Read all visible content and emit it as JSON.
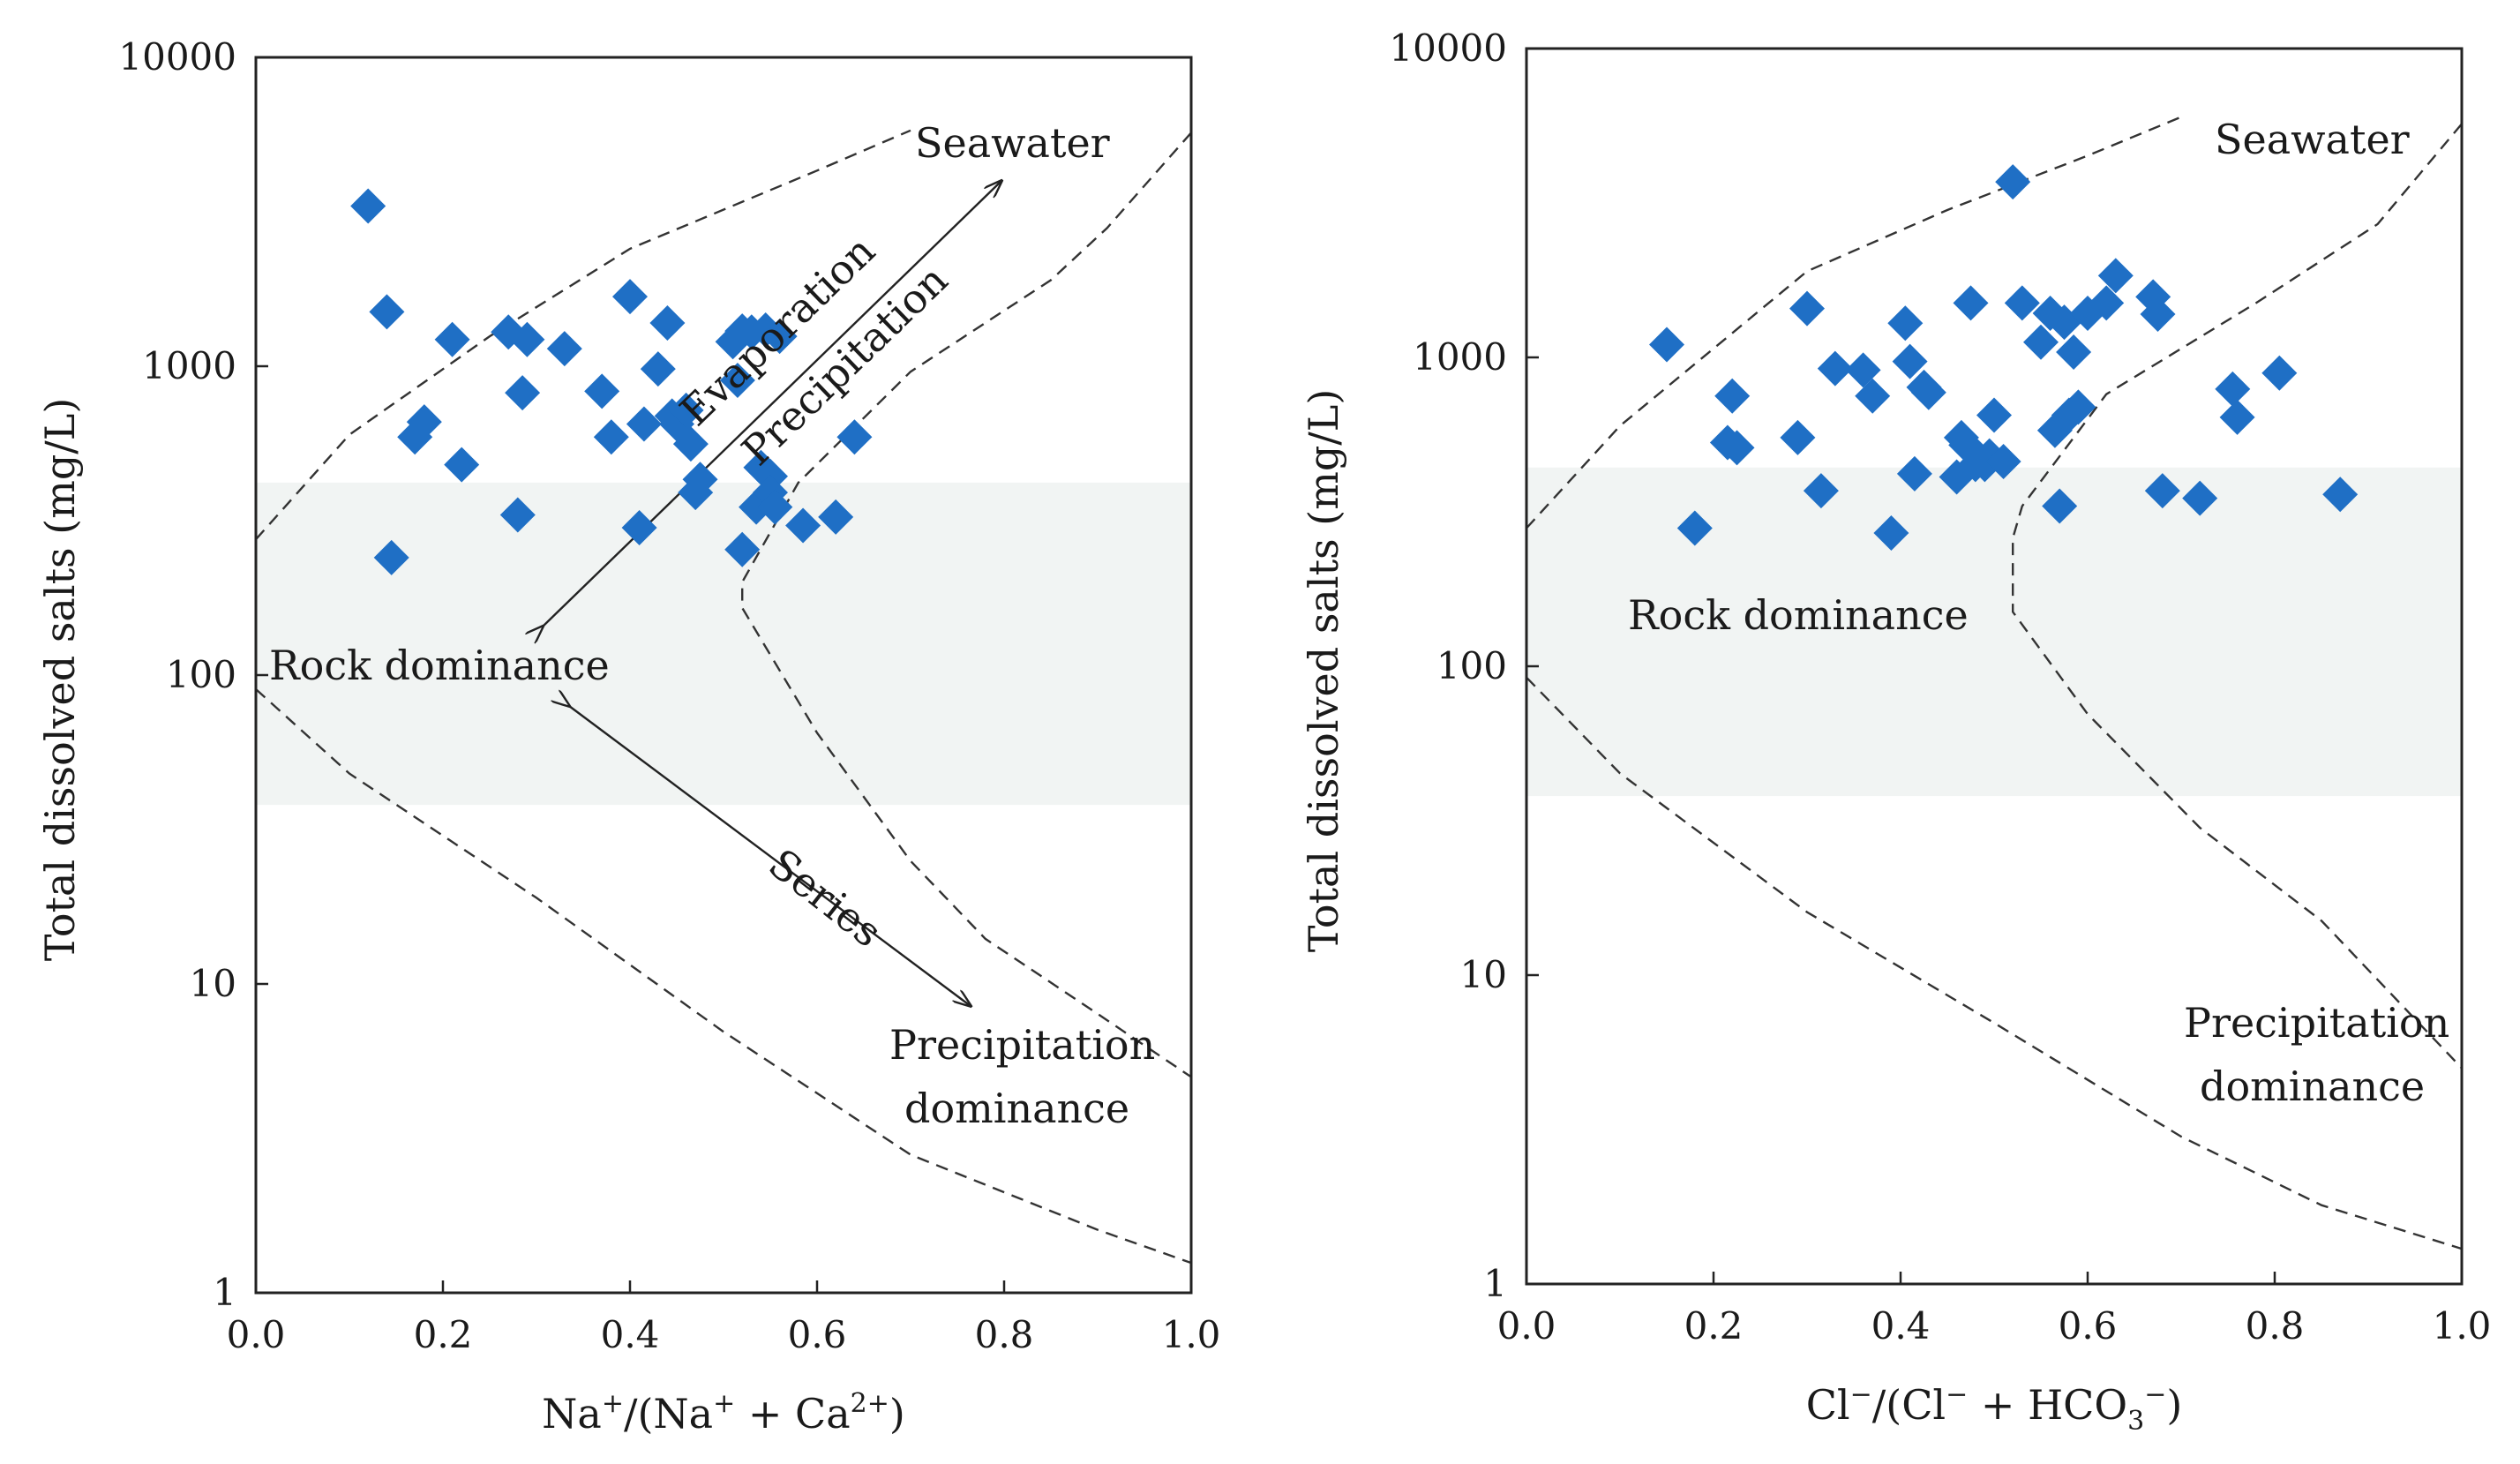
{
  "chart_data": [
    {
      "type": "scatter",
      "xlabel": "Na⁺/(Na⁺ + Ca²⁺)",
      "ylabel": "Total dissolved salts (mg/L)",
      "xlim": [
        0,
        1
      ],
      "ylim": [
        1,
        10000
      ],
      "yscale": "log",
      "xticks": [
        "0.0",
        "0.2",
        "0.4",
        "0.6",
        "0.8",
        "1.0"
      ],
      "yticks": [
        "1",
        "10",
        "100",
        "1000",
        "10000"
      ],
      "grid": false,
      "marker_color": "#1f6fc5",
      "band_color": "#f1f4f3",
      "band_range": [
        38,
        420
      ],
      "annotations": [
        "Seawater",
        "Evaporation",
        "Precipitation",
        "Rock dominance",
        "Series",
        "Precipitation",
        "dominance"
      ],
      "envelope_upper": [
        [
          0.0,
          275
        ],
        [
          0.1,
          600
        ],
        [
          0.25,
          1250
        ],
        [
          0.4,
          2400
        ],
        [
          0.6,
          4300
        ],
        [
          0.7,
          5800
        ]
      ],
      "envelope_lower": [
        [
          0.0,
          90
        ],
        [
          0.1,
          48
        ],
        [
          0.3,
          19
        ],
        [
          0.5,
          7
        ],
        [
          0.7,
          2.8
        ],
        [
          0.9,
          1.6
        ],
        [
          1.0,
          1.25
        ]
      ],
      "envelope_inner": [
        [
          1.0,
          5700
        ],
        [
          0.91,
          2800
        ],
        [
          0.85,
          1900
        ],
        [
          0.7,
          960
        ],
        [
          0.58,
          420
        ],
        [
          0.52,
          200
        ],
        [
          0.52,
          165
        ],
        [
          0.6,
          65
        ],
        [
          0.7,
          25
        ],
        [
          0.78,
          14
        ],
        [
          0.9,
          8
        ],
        [
          1.0,
          5
        ]
      ],
      "series": [
        {
          "x": [
            0.12,
            0.14,
            0.145,
            0.17,
            0.18,
            0.21,
            0.22,
            0.27,
            0.28,
            0.285,
            0.29,
            0.33,
            0.37,
            0.38,
            0.4,
            0.41,
            0.415,
            0.43,
            0.44,
            0.445,
            0.45,
            0.46,
            0.465,
            0.47,
            0.475,
            0.51,
            0.515,
            0.52,
            0.53,
            0.535,
            0.54,
            0.545,
            0.55,
            0.55,
            0.555,
            0.56,
            0.585,
            0.62,
            0.64,
            0.52
          ],
          "y": [
            3300,
            1500,
            240,
            590,
            660,
            1220,
            480,
            1290,
            330,
            820,
            1220,
            1140,
            830,
            590,
            1680,
            300,
            650,
            980,
            1380,
            690,
            650,
            720,
            560,
            390,
            430,
            1200,
            900,
            1300,
            1290,
            350,
            470,
            1310,
            440,
            390,
            350,
            1250,
            305,
            325,
            590,
            255
          ]
        }
      ]
    },
    {
      "type": "scatter",
      "xlabel": "Cl⁻/(Cl⁻ + HCO₃⁻)",
      "ylabel": "Total dissolved salts (mg/L)",
      "xlim": [
        0,
        1
      ],
      "ylim": [
        1,
        10000
      ],
      "yscale": "log",
      "xticks": [
        "0.0",
        "0.2",
        "0.4",
        "0.6",
        "0.8",
        "1.0"
      ],
      "yticks": [
        "1",
        "10",
        "100",
        "1000",
        "10000"
      ],
      "grid": false,
      "marker_color": "#1f6fc5",
      "band_color": "#f1f4f3",
      "band_range": [
        38,
        440
      ],
      "annotations": [
        "Seawater",
        "Rock dominance",
        "Precipitation",
        "dominance"
      ],
      "envelope_upper": [
        [
          0.0,
          280
        ],
        [
          0.1,
          600
        ],
        [
          0.3,
          1900
        ],
        [
          0.45,
          3000
        ],
        [
          0.6,
          4500
        ],
        [
          0.7,
          6000
        ]
      ],
      "envelope_lower": [
        [
          0.0,
          92
        ],
        [
          0.1,
          45
        ],
        [
          0.3,
          16
        ],
        [
          0.5,
          7
        ],
        [
          0.7,
          3
        ],
        [
          0.85,
          1.8
        ],
        [
          1.0,
          1.3
        ]
      ],
      "envelope_inner": [
        [
          1.0,
          5700
        ],
        [
          0.91,
          2700
        ],
        [
          0.78,
          1500
        ],
        [
          0.62,
          760
        ],
        [
          0.53,
          330
        ],
        [
          0.52,
          260
        ],
        [
          0.52,
          150
        ],
        [
          0.6,
          70
        ],
        [
          0.72,
          30
        ],
        [
          0.85,
          15
        ],
        [
          1.0,
          5
        ]
      ],
      "series": [
        {
          "x": [
            0.15,
            0.18,
            0.215,
            0.22,
            0.225,
            0.29,
            0.3,
            0.315,
            0.33,
            0.36,
            0.37,
            0.39,
            0.405,
            0.41,
            0.415,
            0.425,
            0.43,
            0.46,
            0.465,
            0.47,
            0.475,
            0.48,
            0.49,
            0.495,
            0.5,
            0.51,
            0.52,
            0.53,
            0.55,
            0.56,
            0.565,
            0.57,
            0.575,
            0.58,
            0.585,
            0.59,
            0.6,
            0.62,
            0.63,
            0.67,
            0.68,
            0.72,
            0.755,
            0.76,
            0.805,
            0.87,
            0.675
          ],
          "y": [
            1100,
            280,
            530,
            750,
            510,
            550,
            1440,
            370,
            920,
            910,
            750,
            270,
            1290,
            970,
            420,
            800,
            770,
            410,
            550,
            520,
            1500,
            450,
            450,
            480,
            650,
            460,
            3700,
            1500,
            1120,
            1390,
            580,
            330,
            1300,
            650,
            1040,
            690,
            1390,
            1500,
            1840,
            1570,
            370,
            350,
            790,
            640,
            890,
            360,
            1380
          ]
        }
      ]
    }
  ],
  "panels": [
    {
      "xlabel_main": "Na",
      "xlabel_sup1": "+",
      "xlabel_mid": "/(Na",
      "xlabel_sup2": "+",
      "xlabel_mid2": " + Ca",
      "xlabel_sup3": "2+",
      "xlabel_end": ")",
      "ylabel": "Total dissolved salts (mg/L)",
      "seawater": "Seawater",
      "evaporation": "Evaporation",
      "precipitation_diag": "Precipitation",
      "rock": "Rock dominance",
      "series": "Series",
      "precip1": "Precipitation",
      "precip2": "dominance"
    },
    {
      "xlabel_a": "Cl",
      "xlabel_sup1": "−",
      "xlabel_b": "/(Cl",
      "xlabel_sup2": "−",
      "xlabel_c": " + HCO",
      "xlabel_sub": "3",
      "xlabel_sup3": "−",
      "xlabel_d": ")",
      "ylabel": "Total dissolved salts (mg/L)",
      "seawater": "Seawater",
      "rock": "Rock dominance",
      "precip1": "Precipitation",
      "precip2": "dominance"
    }
  ]
}
